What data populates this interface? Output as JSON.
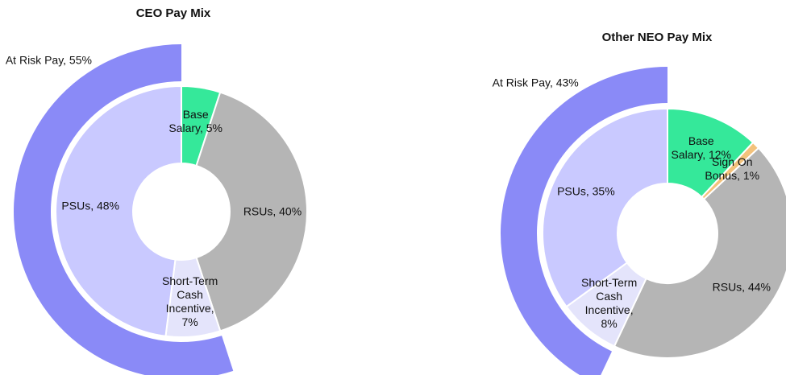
{
  "chart_data": [
    {
      "type": "donut",
      "title": "CEO Pay Mix",
      "values": [
        5,
        40,
        7,
        48
      ],
      "value_labels": [
        "Base Salary, 5%",
        "RSUs, 40%",
        "Short-Term Cash Incentive, 7%",
        "PSUs, 48%"
      ],
      "colors": [
        "#35e89a",
        "#b5b5b5",
        "#e4e4fb",
        "#c9c9ff"
      ],
      "outer": {
        "values": [
          55
        ],
        "value_labels": [
          "At Risk Pay, 55%"
        ],
        "color": "#8a8af7"
      }
    },
    {
      "type": "donut",
      "title": "Other NEO Pay Mix",
      "values": [
        12,
        1,
        44,
        8,
        35
      ],
      "value_labels": [
        "Base Salary, 12%",
        "Sign On Bonus, 1%",
        "RSUs, 44%",
        "Short-Term Cash Incentive, 8%",
        "PSUs, 35%"
      ],
      "colors": [
        "#35e89a",
        "#f3c27c",
        "#b5b5b5",
        "#e4e4fb",
        "#c9c9ff"
      ],
      "outer": {
        "values": [
          43
        ],
        "value_labels": [
          "At Risk Pay, 43%"
        ],
        "color": "#8a8af7"
      }
    }
  ]
}
